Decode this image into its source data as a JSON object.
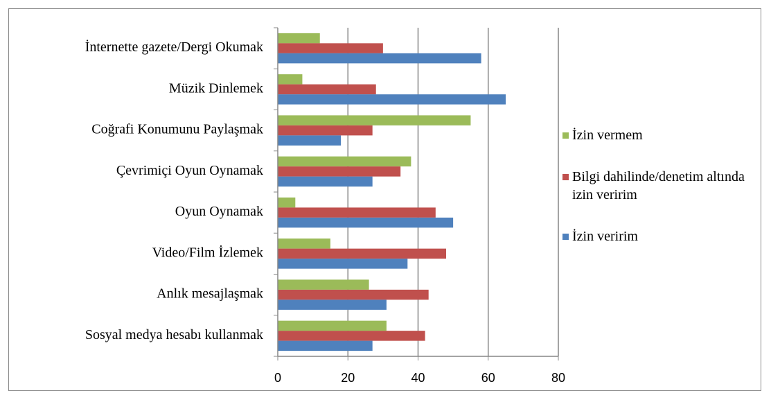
{
  "chart_data": {
    "type": "barh",
    "categories": [
      "İnternette gazete/Dergi Okumak",
      "Müzik Dinlemek",
      "Coğrafi Konumunu Paylaşmak",
      "Çevrimiçi Oyun Oynamak",
      "Oyun Oynamak",
      "Video/Film İzlemek",
      "Anlık mesajlaşmak",
      "Sosyal medya hesabı kullanmak"
    ],
    "series": [
      {
        "name": "İzin vermem",
        "color": "#9bbb59",
        "values": [
          12,
          7,
          55,
          38,
          5,
          15,
          26,
          31
        ]
      },
      {
        "name": "Bilgi dahilinde/denetim altında izin veririm",
        "color": "#c0504d",
        "values": [
          30,
          28,
          27,
          35,
          45,
          48,
          43,
          42
        ]
      },
      {
        "name": "İzin veririm",
        "color": "#4f81bd",
        "values": [
          58,
          65,
          18,
          27,
          50,
          37,
          31,
          27
        ]
      }
    ],
    "xlim": [
      0,
      80
    ],
    "xticks": [
      0,
      20,
      40,
      60,
      80
    ],
    "grid": true,
    "legend": "right"
  }
}
